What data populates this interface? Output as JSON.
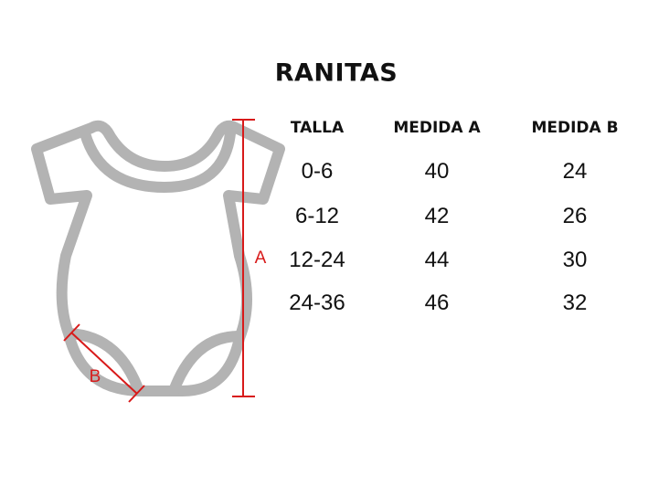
{
  "title": "RANITAS",
  "headers": [
    "TALLA",
    "MEDIDA A",
    "MEDIDA B"
  ],
  "rows": [
    [
      "0-6",
      "40",
      "24"
    ],
    [
      "6-12",
      "42",
      "26"
    ],
    [
      "12-24",
      "44",
      "30"
    ],
    [
      "24-36",
      "46",
      "32"
    ]
  ],
  "diagram": {
    "label_a": "A",
    "label_b": "B",
    "garment_color": "#b3b3b3",
    "measure_color": "#d81a1a"
  }
}
